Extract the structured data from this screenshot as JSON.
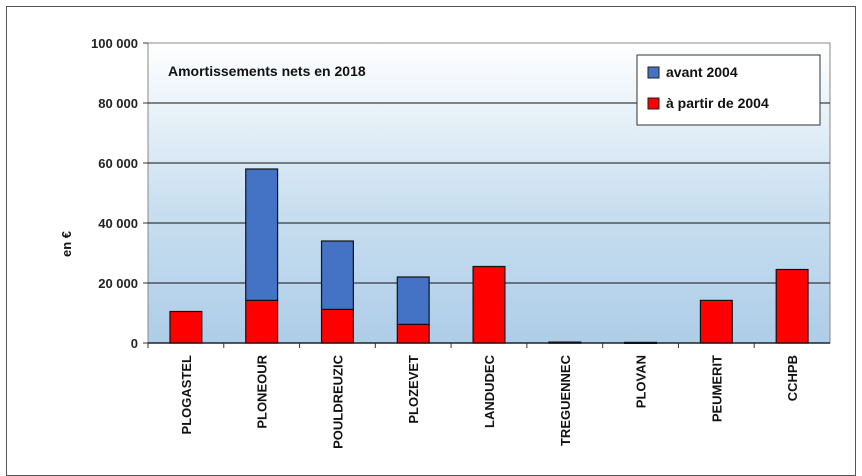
{
  "chart_data": {
    "type": "bar",
    "stacked": true,
    "title": "Amortissements nets en 2018",
    "ylabel": "en €",
    "xlabel": "",
    "ylim": [
      0,
      100000
    ],
    "yticks": [
      "0",
      "20 000",
      "40 000",
      "60 000",
      "80 000",
      "100 000"
    ],
    "ytick_values": [
      0,
      20000,
      40000,
      60000,
      80000,
      100000
    ],
    "grid": true,
    "legend_position": "top-right",
    "categories": [
      "PLOGASTEL",
      "PLONEOUR",
      "POULDREUZIC",
      "PLOZEVET",
      "LANDUDEC",
      "TREGUENNEC",
      "PLOVAN",
      "PEUMERIT",
      "CCHPB"
    ],
    "series": [
      {
        "name": "à partir de 2004",
        "color": "#ff0000",
        "values": [
          10500,
          14200,
          11200,
          6200,
          25500,
          0,
          0,
          14200,
          24500
        ]
      },
      {
        "name": "avant 2004",
        "color": "#4472c4",
        "values": [
          0,
          43800,
          22800,
          15800,
          0,
          300,
          200,
          0,
          0
        ]
      }
    ],
    "legend_order": [
      "avant 2004",
      "à partir de 2004"
    ]
  }
}
